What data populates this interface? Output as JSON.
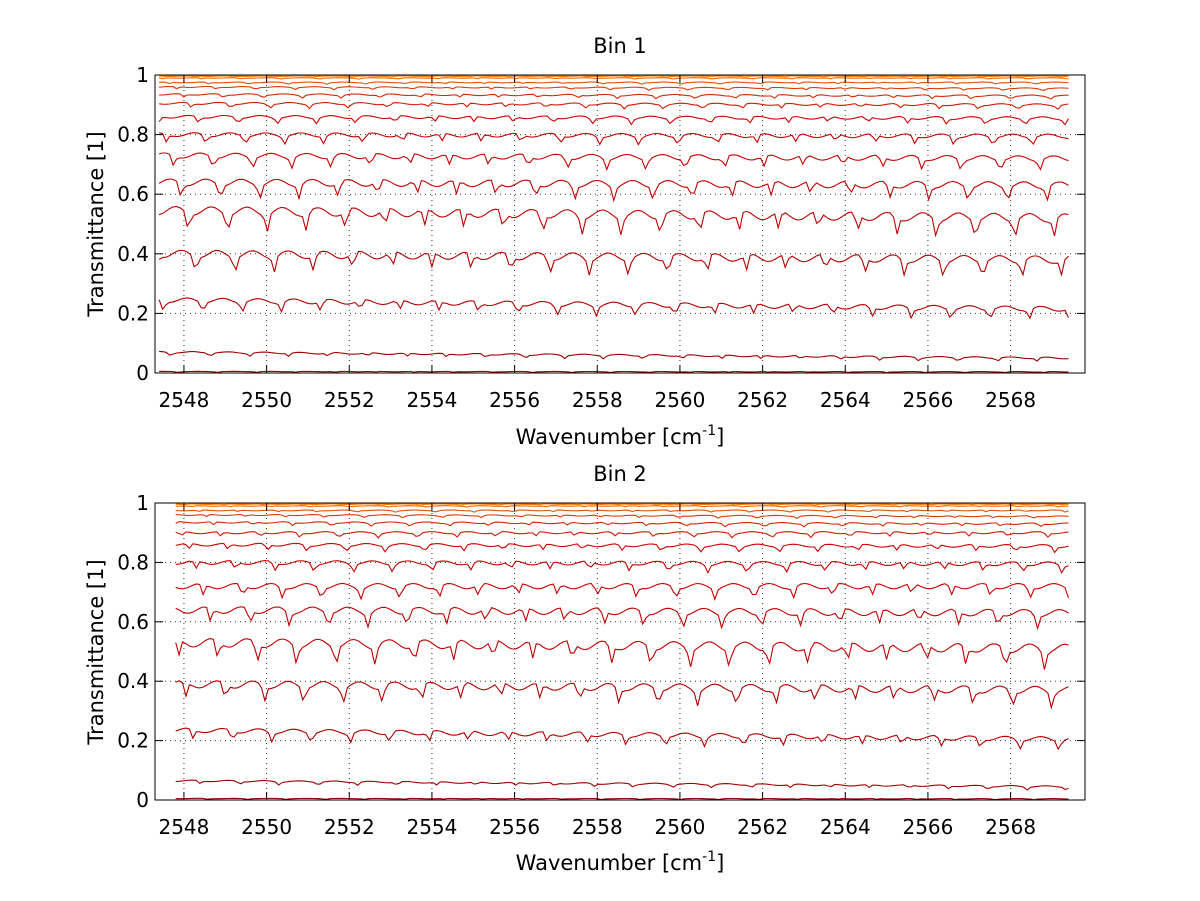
{
  "chart_data": [
    {
      "type": "line",
      "title": "Bin 1",
      "xlabel": "Wavenumber [cm",
      "xlabel_sup": "-1",
      "xlabel_suffix": "]",
      "ylabel": "Transmittance [1]",
      "xlim": [
        2547.3,
        2569.8
      ],
      "ylim": [
        0,
        1
      ],
      "xticks": [
        2548,
        2550,
        2552,
        2554,
        2556,
        2558,
        2560,
        2562,
        2564,
        2566,
        2568
      ],
      "xtick_labels": [
        "2548",
        "2550",
        "2552",
        "2554",
        "2556",
        "2558",
        "2560",
        "2562",
        "2564",
        "2566",
        "2568"
      ],
      "yticks": [
        0,
        0.2,
        0.4,
        0.6,
        0.8,
        1
      ],
      "ytick_labels": [
        "0",
        "0.2",
        "0.4",
        "0.6",
        "0.8",
        "1"
      ],
      "grid": true,
      "legend": "none",
      "x_start": 2547.4,
      "x_end": 2569.4,
      "series": [
        {
          "start": 0.005,
          "end": 0.004,
          "color": "#a00000"
        },
        {
          "start": 0.07,
          "end": 0.05,
          "color": "#a00000"
        },
        {
          "start": 0.245,
          "end": 0.215,
          "color": "#b00000"
        },
        {
          "start": 0.4,
          "end": 0.38,
          "color": "#b00000"
        },
        {
          "start": 0.545,
          "end": 0.52,
          "color": "#c00000"
        },
        {
          "start": 0.64,
          "end": 0.63,
          "color": "#c00000"
        },
        {
          "start": 0.73,
          "end": 0.72,
          "color": "#c80000"
        },
        {
          "start": 0.8,
          "end": 0.795,
          "color": "#c80000"
        },
        {
          "start": 0.86,
          "end": 0.855,
          "color": "#d00000"
        },
        {
          "start": 0.905,
          "end": 0.9,
          "color": "#d21a00"
        },
        {
          "start": 0.935,
          "end": 0.93,
          "color": "#d82800"
        },
        {
          "start": 0.96,
          "end": 0.955,
          "color": "#e03a00"
        },
        {
          "start": 0.975,
          "end": 0.975,
          "color": "#ea5000"
        },
        {
          "start": 0.99,
          "end": 0.99,
          "color": "#f06400"
        },
        {
          "start": 0.996,
          "end": 0.996,
          "color": "#f77a00"
        },
        {
          "start": 0.999,
          "end": 0.999,
          "color": "#ff8c00"
        }
      ]
    },
    {
      "type": "line",
      "title": "Bin 2",
      "xlabel": "Wavenumber [cm",
      "xlabel_sup": "-1",
      "xlabel_suffix": "]",
      "ylabel": "Transmittance [1]",
      "xlim": [
        2547.3,
        2569.8
      ],
      "ylim": [
        0,
        1
      ],
      "xticks": [
        2548,
        2550,
        2552,
        2554,
        2556,
        2558,
        2560,
        2562,
        2564,
        2566,
        2568
      ],
      "xtick_labels": [
        "2548",
        "2550",
        "2552",
        "2554",
        "2556",
        "2558",
        "2560",
        "2562",
        "2564",
        "2566",
        "2568"
      ],
      "yticks": [
        0,
        0.2,
        0.4,
        0.6,
        0.8,
        1
      ],
      "ytick_labels": [
        "0",
        "0.2",
        "0.4",
        "0.6",
        "0.8",
        "1"
      ],
      "grid": true,
      "legend": "none",
      "x_start": 2547.8,
      "x_end": 2569.4,
      "series": [
        {
          "start": 0.005,
          "end": 0.004,
          "color": "#a00000"
        },
        {
          "start": 0.065,
          "end": 0.045,
          "color": "#a00000"
        },
        {
          "start": 0.235,
          "end": 0.205,
          "color": "#b00000"
        },
        {
          "start": 0.39,
          "end": 0.37,
          "color": "#b00000"
        },
        {
          "start": 0.53,
          "end": 0.51,
          "color": "#c00000"
        },
        {
          "start": 0.64,
          "end": 0.63,
          "color": "#c00000"
        },
        {
          "start": 0.72,
          "end": 0.72,
          "color": "#c80000"
        },
        {
          "start": 0.8,
          "end": 0.795,
          "color": "#c80000"
        },
        {
          "start": 0.86,
          "end": 0.855,
          "color": "#d00000"
        },
        {
          "start": 0.9,
          "end": 0.9,
          "color": "#d21a00"
        },
        {
          "start": 0.935,
          "end": 0.93,
          "color": "#d82800"
        },
        {
          "start": 0.96,
          "end": 0.955,
          "color": "#e03a00"
        },
        {
          "start": 0.975,
          "end": 0.975,
          "color": "#ea5000"
        },
        {
          "start": 0.99,
          "end": 0.99,
          "color": "#f06400"
        },
        {
          "start": 0.996,
          "end": 0.996,
          "color": "#f77a00"
        },
        {
          "start": 0.999,
          "end": 0.999,
          "color": "#ff8c00"
        }
      ]
    }
  ]
}
